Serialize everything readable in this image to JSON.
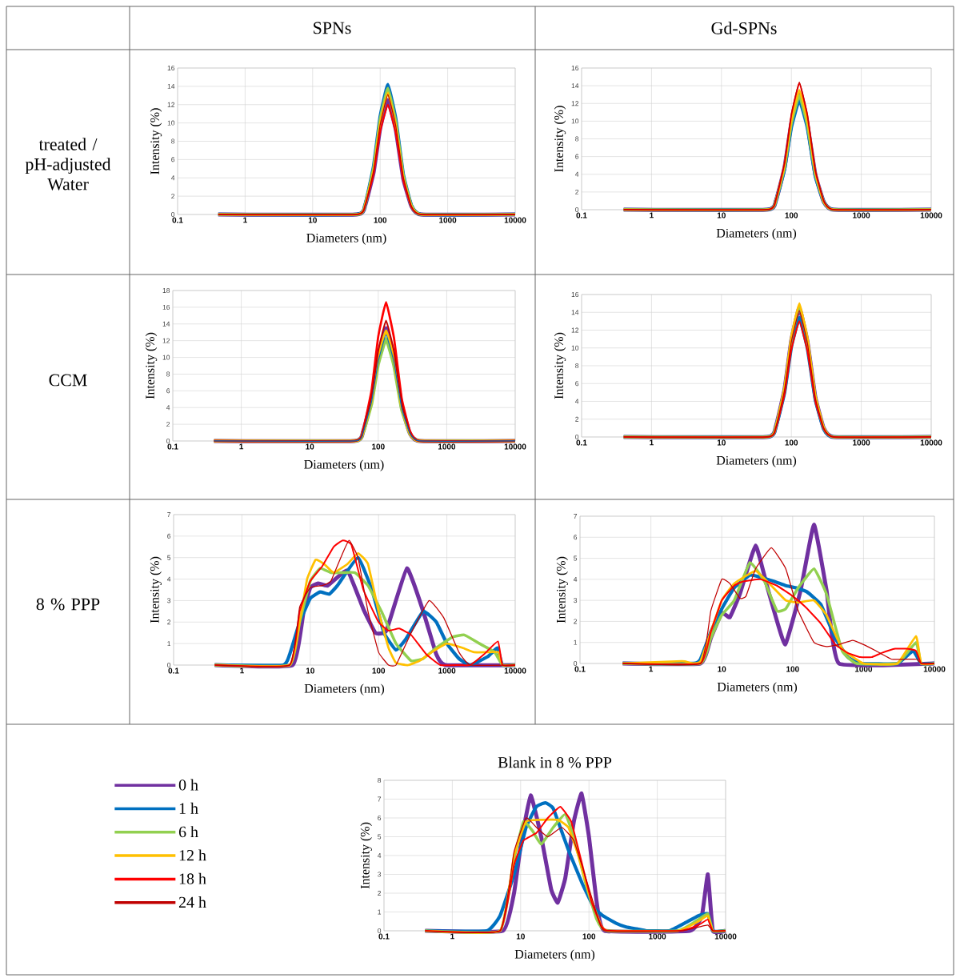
{
  "chart_data": [
    {
      "type": "other",
      "annotations": [
        "SPNs",
        "Gd-SPNs",
        "treated / pH-adjusted Water",
        "CCM",
        "8 % PPP"
      ]
    },
    {
      "type": "line",
      "xlabel": "Diameters (nm)",
      "ylabel": "Intensity (%)",
      "log": "x",
      "grid": true,
      "xlim": [
        0.1,
        10000
      ],
      "ylim": [
        0,
        16
      ],
      "xticks": [
        0.1,
        1,
        10,
        100,
        1000,
        10000
      ],
      "yticks": [
        0,
        2,
        4,
        6,
        8,
        10,
        12,
        14,
        16
      ],
      "x": [
        0.4,
        45,
        60,
        80,
        100,
        130,
        170,
        220,
        290,
        400,
        10000
      ],
      "series": [
        {
          "color": "#7030a0",
          "values": [
            0,
            0,
            1.0,
            4.6,
            9.4,
            12.5,
            9.3,
            3.9,
            0.9,
            0,
            0
          ]
        },
        {
          "color": "#0070c0",
          "values": [
            0,
            0,
            1.1,
            5.3,
            10.7,
            14.2,
            10.5,
            4.4,
            1.0,
            0,
            0
          ]
        },
        {
          "color": "#92d050",
          "values": [
            0,
            0,
            1.1,
            5.1,
            10.4,
            13.8,
            10.2,
            4.3,
            1.0,
            0,
            0
          ]
        },
        {
          "color": "#ffc000",
          "values": [
            0,
            0,
            1.1,
            4.9,
            10.0,
            13.3,
            9.8,
            4.1,
            0.9,
            0,
            0
          ]
        },
        {
          "color": "#ff0000",
          "values": [
            0,
            0,
            1.0,
            4.4,
            9.0,
            12.0,
            8.9,
            3.7,
            0.8,
            0,
            0
          ]
        },
        {
          "color": "#c00000",
          "values": [
            0,
            0,
            1.0,
            4.8,
            9.8,
            13.1,
            9.7,
            4.1,
            0.9,
            0,
            0
          ]
        }
      ]
    },
    {
      "type": "line",
      "xlabel": "Diameters (nm)",
      "ylabel": "Intensity (%)",
      "log": "x",
      "grid": true,
      "xlim": [
        0.1,
        10000
      ],
      "ylim": [
        0,
        16
      ],
      "xticks": [
        0.1,
        1,
        10,
        100,
        1000,
        10000
      ],
      "yticks": [
        0,
        2,
        4,
        6,
        8,
        10,
        12,
        14,
        16
      ],
      "x": [
        0.4,
        45,
        60,
        80,
        100,
        130,
        170,
        220,
        290,
        400,
        10000
      ],
      "series": [
        {
          "color": "#7030a0",
          "values": [
            0,
            0,
            1.0,
            4.8,
            9.8,
            13.0,
            9.6,
            4.0,
            0.9,
            0,
            0
          ]
        },
        {
          "color": "#0070c0",
          "values": [
            0,
            0,
            1.0,
            4.6,
            9.3,
            12.4,
            9.2,
            3.8,
            0.9,
            0,
            0
          ]
        },
        {
          "color": "#92d050",
          "values": [
            0,
            0,
            1.0,
            4.8,
            9.7,
            12.9,
            9.5,
            4.0,
            0.9,
            0,
            0
          ]
        },
        {
          "color": "#ffc000",
          "values": [
            0,
            0,
            1.1,
            5.0,
            10.1,
            13.5,
            10.0,
            4.2,
            0.9,
            0,
            0
          ]
        },
        {
          "color": "#ff0000",
          "values": [
            0,
            0,
            1.1,
            5.3,
            10.7,
            14.3,
            10.6,
            4.4,
            1.0,
            0,
            0
          ]
        },
        {
          "color": "#c00000",
          "values": [
            0,
            0,
            1.2,
            5.3,
            10.8,
            14.4,
            10.7,
            4.5,
            1.0,
            0,
            0
          ]
        }
      ]
    },
    {
      "type": "line",
      "xlabel": "Diameters (nm)",
      "ylabel": "Intensity (%)",
      "log": "x",
      "grid": true,
      "xlim": [
        0.1,
        10000
      ],
      "ylim": [
        0,
        18
      ],
      "xticks": [
        0.1,
        1,
        10,
        100,
        1000,
        10000
      ],
      "yticks": [
        0,
        2,
        4,
        6,
        8,
        10,
        12,
        14,
        16,
        18
      ],
      "x": [
        0.4,
        45,
        60,
        80,
        100,
        130,
        170,
        220,
        290,
        400,
        10000
      ],
      "series": [
        {
          "color": "#7030a0",
          "values": [
            0,
            0,
            1.1,
            5.0,
            10.1,
            13.5,
            10.0,
            4.2,
            0.9,
            0,
            0
          ]
        },
        {
          "color": "#92d050",
          "values": [
            0,
            0,
            1.0,
            4.5,
            9.2,
            12.2,
            9.0,
            3.8,
            0.9,
            0,
            0
          ]
        },
        {
          "color": "#ffc000",
          "values": [
            0,
            0,
            1.1,
            4.9,
            9.9,
            13.2,
            9.8,
            4.1,
            0.9,
            0,
            0
          ]
        },
        {
          "color": "#ff0000",
          "values": [
            0,
            0,
            1.3,
            6.1,
            12.5,
            16.6,
            12.3,
            5.1,
            1.2,
            0,
            0
          ]
        },
        {
          "color": "#c00000",
          "values": [
            0,
            0,
            1.2,
            5.3,
            10.8,
            14.4,
            10.7,
            4.5,
            1.0,
            0,
            0
          ]
        },
        {
          "color": "#0070c0",
          "values": [
            0,
            0,
            1.0,
            4.7,
            9.5,
            12.7,
            9.4,
            3.9,
            0.9,
            0,
            0
          ]
        }
      ]
    },
    {
      "type": "line",
      "xlabel": "Diameters (nm)",
      "ylabel": "Intensity (%)",
      "log": "x",
      "grid": true,
      "xlim": [
        0.1,
        10000
      ],
      "ylim": [
        0,
        16
      ],
      "xticks": [
        0.1,
        1,
        10,
        100,
        1000,
        10000
      ],
      "yticks": [
        0,
        2,
        4,
        6,
        8,
        10,
        12,
        14,
        16
      ],
      "x": [
        0.4,
        45,
        60,
        80,
        100,
        130,
        170,
        220,
        290,
        400,
        10000
      ],
      "series": [
        {
          "color": "#7030a0",
          "values": [
            0,
            0,
            1.2,
            5.4,
            10.9,
            14.5,
            10.7,
            4.5,
            1.0,
            0,
            0
          ]
        },
        {
          "color": "#0070c0",
          "values": [
            0,
            0,
            1.1,
            5.0,
            10.1,
            13.4,
            9.9,
            4.2,
            0.9,
            0,
            0
          ]
        },
        {
          "color": "#92d050",
          "values": [
            0,
            0,
            1.2,
            5.4,
            11.0,
            14.6,
            10.8,
            4.5,
            1.0,
            0,
            0
          ]
        },
        {
          "color": "#ffc000",
          "values": [
            0,
            0,
            1.2,
            5.6,
            11.3,
            15.0,
            11.1,
            4.7,
            1.1,
            0,
            0
          ]
        },
        {
          "color": "#ff0000",
          "values": [
            0,
            0,
            1.0,
            4.8,
            9.8,
            13.0,
            9.6,
            4.0,
            0.9,
            0,
            0
          ]
        },
        {
          "color": "#c00000",
          "values": [
            0,
            0,
            1.1,
            5.3,
            10.7,
            14.2,
            10.5,
            4.4,
            1.0,
            0,
            0
          ]
        }
      ]
    },
    {
      "type": "line",
      "xlabel": "Diameters (nm)",
      "ylabel": "Intensity (%)",
      "log": "x",
      "grid": true,
      "xlim": [
        0.1,
        10000
      ],
      "ylim": [
        0,
        7
      ],
      "xticks": [
        0.1,
        1,
        10,
        100,
        1000,
        10000
      ],
      "yticks": [
        0,
        1,
        2,
        3,
        4,
        5,
        6,
        7
      ],
      "series": [
        {
          "color": "#7030a0",
          "x": [
            0.4,
            5.5,
            8,
            10,
            13,
            18,
            35,
            60,
            90,
            130,
            260,
            450,
            700,
            950,
            10000
          ],
          "values": [
            0,
            0,
            2.5,
            3.6,
            3.8,
            3.7,
            4.4,
            2.6,
            1.5,
            1.6,
            4.5,
            2.5,
            0.5,
            0,
            0
          ]
        },
        {
          "color": "#0070c0",
          "x": [
            0.4,
            4,
            5,
            7,
            10,
            14,
            19,
            25,
            50,
            80,
            120,
            180,
            250,
            450,
            700,
            1000,
            1500,
            2200,
            4000,
            5500,
            6500,
            10000
          ],
          "values": [
            0,
            0,
            0.5,
            2,
            3.1,
            3.4,
            3.3,
            3.7,
            5.0,
            3.5,
            1.5,
            0.7,
            1.2,
            2.5,
            2.0,
            1.0,
            0.3,
            0,
            0.4,
            0.8,
            0,
            0
          ]
        },
        {
          "color": "#92d050",
          "x": [
            0.4,
            5,
            7,
            10,
            14,
            20,
            30,
            45,
            70,
            110,
            180,
            300,
            450,
            700,
            1200,
            1800,
            3000,
            5000,
            6500,
            10000
          ],
          "values": [
            0,
            0,
            2,
            3.9,
            4.5,
            4.3,
            4.3,
            4.3,
            3.7,
            2.5,
            1.0,
            0.2,
            0.3,
            0.8,
            1.3,
            1.4,
            1.0,
            0.6,
            0,
            0
          ]
        },
        {
          "color": "#ffc000",
          "x": [
            0.4,
            5,
            7,
            9,
            12,
            16,
            22,
            35,
            50,
            70,
            100,
            140,
            180,
            270,
            400,
            600,
            1000,
            1700,
            2500,
            4000,
            5700,
            6500,
            10000
          ],
          "values": [
            0,
            0,
            2,
            4,
            4.9,
            4.7,
            4.3,
            4.7,
            5.2,
            4.7,
            2.5,
            0.8,
            0.1,
            0,
            0.2,
            0.6,
            1.0,
            0.8,
            0.6,
            0.6,
            0.6,
            0,
            0
          ]
        },
        {
          "color": "#ff0000",
          "x": [
            0.4,
            5,
            7,
            10,
            15,
            22,
            30,
            40,
            60,
            100,
            140,
            200,
            300,
            500,
            800,
            1500,
            2200,
            3500,
            5600,
            6500,
            10000
          ],
          "values": [
            0,
            0,
            2.5,
            3.9,
            4.6,
            5.5,
            5.8,
            5.6,
            3.5,
            2.0,
            1.6,
            1.7,
            1.4,
            0.5,
            0,
            0,
            0,
            0.5,
            1.1,
            0,
            0
          ]
        },
        {
          "color": "#c00000",
          "x": [
            0.4,
            5,
            7,
            10,
            15,
            20,
            28,
            37,
            50,
            70,
            100,
            140,
            180,
            300,
            550,
            900,
            1500,
            2200,
            10000
          ],
          "values": [
            0,
            0,
            2.7,
            3.6,
            3.7,
            3.9,
            5.0,
            5.8,
            5.0,
            2.5,
            0.6,
            0,
            0,
            1.5,
            3.0,
            2.2,
            0.6,
            0,
            0
          ]
        }
      ]
    },
    {
      "type": "line",
      "xlabel": "Diameters (nm)",
      "ylabel": "Intensity (%)",
      "log": "x",
      "grid": true,
      "xlim": [
        0.1,
        10000
      ],
      "ylim": [
        0,
        7
      ],
      "xticks": [
        0.1,
        1,
        10,
        100,
        1000,
        10000
      ],
      "yticks": [
        0,
        1,
        2,
        3,
        4,
        5,
        6,
        7
      ],
      "series": [
        {
          "color": "#7030a0",
          "x": [
            0.4,
            5,
            7,
            10,
            13,
            18,
            30,
            45,
            78,
            130,
            200,
            300,
            450,
            10000
          ],
          "values": [
            0,
            0,
            1.2,
            2.4,
            2.2,
            3.3,
            5.6,
            3.5,
            0.9,
            3.5,
            6.6,
            3.5,
            0,
            0
          ]
        },
        {
          "color": "#0070c0",
          "x": [
            0.4,
            4,
            5,
            7,
            10,
            15,
            25,
            35,
            55,
            80,
            110,
            160,
            250,
            400,
            600,
            900,
            3000,
            5000,
            6500,
            10000
          ],
          "values": [
            0,
            0,
            0.2,
            1.5,
            2.6,
            3.6,
            4.2,
            4.1,
            3.9,
            3.7,
            3.6,
            3.4,
            2.8,
            1.2,
            0.3,
            0,
            0,
            0.6,
            0,
            0
          ]
        },
        {
          "color": "#92d050",
          "x": [
            0.4,
            5,
            7,
            10,
            15,
            25,
            40,
            60,
            80,
            120,
            200,
            300,
            500,
            800,
            3000,
            5500,
            6500,
            10000
          ],
          "values": [
            0,
            0,
            1.2,
            2.3,
            3.0,
            4.8,
            3.9,
            2.5,
            2.6,
            3.6,
            4.5,
            3.3,
            0.6,
            0,
            0,
            1.0,
            0,
            0
          ]
        },
        {
          "color": "#ffc000",
          "x": [
            0.4,
            2.3,
            3,
            4,
            5,
            7,
            10,
            15,
            30,
            50,
            80,
            120,
            200,
            300,
            500,
            1000,
            3000,
            5500,
            6500,
            10000
          ],
          "values": [
            0,
            0.1,
            0.1,
            0,
            0.1,
            1.5,
            3.0,
            3.8,
            4.4,
            3.7,
            3.0,
            2.9,
            3.0,
            2.3,
            0.7,
            0,
            0,
            1.3,
            0,
            0
          ]
        },
        {
          "color": "#ff0000",
          "x": [
            0.4,
            5,
            7,
            10,
            15,
            20,
            35,
            60,
            100,
            150,
            250,
            400,
            600,
            900,
            1300,
            1800,
            2800,
            4000,
            5500,
            6500,
            10000
          ],
          "values": [
            0,
            0,
            1.5,
            3.0,
            3.7,
            3.9,
            4.0,
            3.7,
            3.2,
            2.7,
            1.9,
            0.9,
            0.5,
            0.3,
            0.3,
            0.5,
            0.7,
            0.7,
            0.6,
            0,
            0
          ]
        },
        {
          "color": "#c00000",
          "x": [
            0.4,
            5,
            7,
            10,
            13,
            18,
            22,
            30,
            50,
            80,
            120,
            200,
            300,
            450,
            700,
            1000,
            1500,
            2500,
            4000,
            5600,
            6500,
            10000
          ],
          "values": [
            0,
            0,
            2.5,
            4.0,
            3.8,
            3.1,
            3.2,
            4.5,
            5.5,
            4.5,
            2.5,
            1.0,
            0.8,
            0.9,
            1.1,
            0.9,
            0.6,
            0.2,
            0.2,
            0.2,
            0,
            0
          ]
        }
      ]
    },
    {
      "type": "line",
      "title": "Blank in 8 % PPP",
      "xlabel": "Diameters (nm)",
      "ylabel": "Intensity (%)",
      "log": "x",
      "grid": true,
      "legend": "left",
      "xlim": [
        0.1,
        10000
      ],
      "ylim": [
        0,
        8
      ],
      "xticks": [
        0.1,
        1,
        10,
        100,
        1000,
        10000
      ],
      "yticks": [
        0,
        1,
        2,
        3,
        4,
        5,
        6,
        7,
        8
      ],
      "series": [
        {
          "name": "0 h",
          "color": "#7030a0",
          "x": [
            0.4,
            5.5,
            8,
            10,
            14,
            20,
            28,
            35,
            45,
            60,
            78,
            100,
            130,
            170,
            3000,
            4500,
            5500,
            6500,
            10000
          ],
          "values": [
            0,
            0,
            2,
            4.5,
            7.2,
            5.0,
            2.2,
            1.5,
            2.8,
            5.8,
            7.3,
            5.0,
            1.5,
            0,
            0,
            0.8,
            3.0,
            0,
            0
          ]
        },
        {
          "name": "1 h",
          "color": "#0070c0",
          "x": [
            0.4,
            3.2,
            5,
            8,
            12,
            17,
            23,
            30,
            50,
            80,
            120,
            160,
            250,
            350,
            500,
            700,
            1500,
            2500,
            4000,
            5500,
            6500,
            10000
          ],
          "values": [
            0,
            0,
            0.8,
            3,
            5.5,
            6.6,
            6.8,
            6.5,
            4.3,
            2.5,
            1.2,
            0.8,
            0.4,
            0.2,
            0.1,
            0,
            0,
            0.4,
            0.8,
            0.9,
            0,
            0
          ]
        },
        {
          "name": "6 h",
          "color": "#92d050",
          "x": [
            0.4,
            5,
            8,
            11,
            15,
            20,
            30,
            45,
            60,
            90,
            130,
            180,
            2000,
            4000,
            5500,
            6500,
            10000
          ],
          "values": [
            0,
            0,
            3.8,
            5.8,
            5.3,
            4.6,
            5.5,
            6.2,
            5.0,
            2.5,
            0.6,
            0,
            0,
            0.6,
            0.9,
            0,
            0
          ]
        },
        {
          "name": "12 h",
          "color": "#ffc000",
          "x": [
            0.4,
            5,
            8,
            12,
            20,
            35,
            50,
            70,
            100,
            150,
            190,
            2000,
            4000,
            5500,
            6500,
            10000
          ],
          "values": [
            0,
            0,
            4,
            5.8,
            5.9,
            5.9,
            5.5,
            4.0,
            2.0,
            0.3,
            0,
            0,
            0.5,
            0.8,
            0,
            0
          ]
        },
        {
          "name": "18 h",
          "color": "#ff0000",
          "x": [
            0.4,
            5,
            8,
            11,
            17,
            25,
            38,
            55,
            80,
            110,
            150,
            190,
            2200,
            4000,
            5500,
            6500,
            10000
          ],
          "values": [
            0,
            0,
            3.5,
            4.8,
            5.2,
            6.0,
            6.6,
            5.8,
            3.5,
            1.5,
            0.3,
            0,
            0,
            0.3,
            0.6,
            0,
            0
          ]
        },
        {
          "name": "24 h",
          "color": "#c00000",
          "x": [
            0.4,
            5,
            8,
            12,
            17,
            25,
            40,
            60,
            90,
            130,
            170,
            2200,
            4000,
            5500,
            6500,
            10000
          ],
          "values": [
            0,
            0,
            4.2,
            6.0,
            5.5,
            5.0,
            5.5,
            4.8,
            2.8,
            0.9,
            0,
            0,
            0.2,
            0.3,
            0,
            0
          ]
        }
      ]
    }
  ]
}
